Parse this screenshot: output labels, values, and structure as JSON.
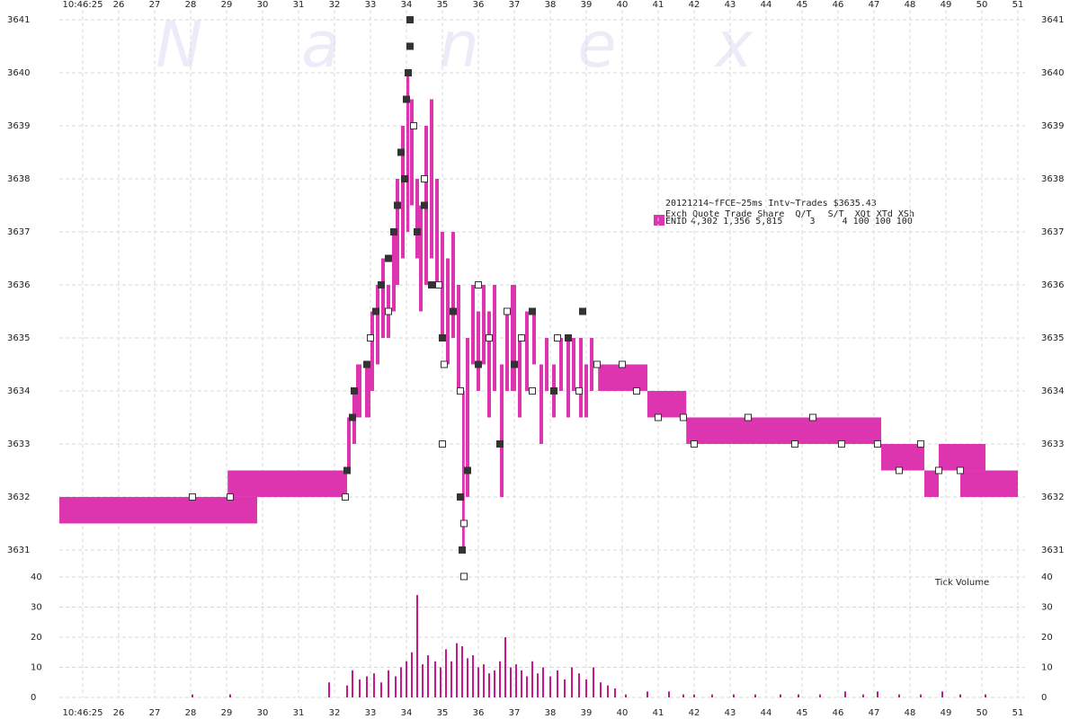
{
  "chart_data": {
    "type": "quote-trade",
    "watermark": "Nanex",
    "legend_lines": [
      "20121214~fFCE~25ms Intv~Trades $3635.43",
      "Exch Quote Trade Share  Q/T   S/T  XQt XTd XSh"
    ],
    "series": [
      {
        "name": "ENID",
        "stats": "4,302 1,356 5,815     3     4 100 100 100",
        "color": "#dd35b0",
        "start": [
          24.35,
          29.03,
          40.7,
          41.78,
          47.2,
          48.4,
          48.8,
          49.4,
          49.4,
          32.35,
          32.5,
          32.6,
          32.85,
          33.0,
          33.15,
          33.3,
          33.45,
          33.6,
          33.7,
          33.85,
          34.0,
          34.1,
          34.25,
          34.35,
          34.5,
          34.65,
          34.8,
          34.95,
          35.1,
          35.25,
          35.4,
          35.55,
          35.65,
          35.8,
          35.95,
          36.1,
          36.25,
          36.4,
          36.6,
          36.75,
          36.9,
          37.1,
          37.3,
          37.5,
          37.7,
          37.85,
          38.05,
          38.25,
          38.45,
          38.6,
          38.8,
          38.95,
          39.1,
          39.33
        ],
        "end": [
          29.85,
          32.35,
          41.78,
          47.2,
          48.4,
          48.8,
          49.4,
          50.1,
          51.0,
          32.45,
          32.6,
          32.75,
          33.0,
          33.1,
          33.25,
          33.4,
          33.55,
          33.7,
          33.8,
          33.95,
          34.08,
          34.2,
          34.35,
          34.45,
          34.6,
          34.75,
          34.9,
          35.05,
          35.2,
          35.35,
          35.5,
          35.62,
          35.75,
          35.9,
          36.05,
          36.2,
          36.35,
          36.5,
          36.7,
          36.85,
          37.05,
          37.2,
          37.4,
          37.6,
          37.8,
          37.95,
          38.15,
          38.35,
          38.55,
          38.7,
          38.9,
          39.05,
          39.2,
          40.7
        ],
        "low": [
          3631.5,
          3632,
          3633.5,
          3633,
          3632.5,
          3632,
          3632.5,
          3632.5,
          3632,
          3632.5,
          3633,
          3633.5,
          3633.5,
          3634,
          3634.5,
          3635,
          3635,
          3635.5,
          3636,
          3636.5,
          3637,
          3637.5,
          3636.5,
          3635.5,
          3636,
          3636.5,
          3636,
          3635,
          3634.5,
          3635,
          3634,
          3631,
          3632,
          3634.5,
          3634,
          3634.5,
          3633.5,
          3634,
          3632,
          3634,
          3634,
          3633.5,
          3634,
          3634.5,
          3633,
          3634,
          3633.5,
          3634,
          3633.5,
          3634,
          3633.5,
          3633.5,
          3634,
          3634
        ],
        "high": [
          3632,
          3632.5,
          3634,
          3633.5,
          3633,
          3632.5,
          3633,
          3633,
          3632.5,
          3633.5,
          3634,
          3634.5,
          3634.5,
          3635.5,
          3636,
          3636.5,
          3636,
          3637,
          3638,
          3639,
          3640,
          3639.5,
          3638,
          3637.5,
          3639,
          3639.5,
          3638,
          3637,
          3636.5,
          3637,
          3636,
          3634,
          3635,
          3636,
          3635.5,
          3636,
          3635.5,
          3636,
          3634.5,
          3635.5,
          3636,
          3635,
          3635.5,
          3635.5,
          3634.5,
          3635,
          3634.5,
          3635,
          3635,
          3635,
          3635,
          3634.5,
          3635,
          3634.5
        ]
      }
    ],
    "trades_light": {
      "color": "#ffffff",
      "x": [
        28.05,
        29.1,
        32.3,
        33.0,
        33.5,
        34.2,
        34.5,
        34.9,
        35.05,
        35.5,
        35.6,
        35.6,
        36.0,
        36.3,
        36.8,
        37.2,
        37.5,
        38.2,
        38.8,
        39.3,
        40.0,
        40.4,
        41.0,
        41.7,
        42.0,
        43.5,
        44.8,
        45.3,
        46.1,
        47.1,
        47.7,
        48.3,
        48.8,
        49.4,
        35.0
      ],
      "y": [
        3632,
        3632,
        3632,
        3635,
        3635.5,
        3639,
        3638,
        3636,
        3634.5,
        3634,
        3631.5,
        3630.5,
        3636,
        3635,
        3635.5,
        3635,
        3634,
        3635,
        3634,
        3634.5,
        3634.5,
        3634,
        3633.5,
        3633.5,
        3633,
        3633.5,
        3633,
        3633.5,
        3633,
        3633,
        3632.5,
        3633,
        3632.5,
        3632.5,
        3633
      ]
    },
    "trades_dark": {
      "color": "#333333",
      "x": [
        32.35,
        32.5,
        32.55,
        32.9,
        33.15,
        33.3,
        33.5,
        33.65,
        33.75,
        33.85,
        34.05,
        34.1,
        34.1,
        34.0,
        34.3,
        34.5,
        34.7,
        35.0,
        35.5,
        35.55,
        35.7,
        36.0,
        36.6,
        37.0,
        37.5,
        38.1,
        38.5,
        38.9,
        35.3,
        33.95
      ],
      "y": [
        3632.5,
        3633.5,
        3634,
        3634.5,
        3635.5,
        3636,
        3636.5,
        3637,
        3637.5,
        3638.5,
        3640,
        3641,
        3640.5,
        3639.5,
        3637,
        3637.5,
        3636,
        3635,
        3632,
        3631,
        3632.5,
        3634.5,
        3633,
        3634.5,
        3635.5,
        3634,
        3635,
        3635.5,
        3635.5,
        3638
      ]
    },
    "xlim": [
      24.35,
      51.2
    ],
    "xticks": [
      {
        "value": 25,
        "label": "10:46:25"
      },
      26,
      27,
      28,
      29,
      30,
      31,
      32,
      33,
      34,
      35,
      36,
      37,
      38,
      39,
      40,
      41,
      42,
      43,
      44,
      45,
      46,
      47,
      48,
      49,
      50,
      51
    ],
    "ylim": [
      3630.55,
      3641.3
    ],
    "yticks": [
      3631,
      3632,
      3633,
      3634,
      3635,
      3636,
      3637,
      3638,
      3639,
      3640,
      3641
    ],
    "volume": {
      "label": "Tick Volume",
      "color": "#c8188c",
      "ylim": [
        0,
        40
      ],
      "yticks": [
        0,
        10,
        20,
        30,
        40
      ],
      "x": [
        28.05,
        29.1,
        31.85,
        32.35,
        32.5,
        32.7,
        32.9,
        33.1,
        33.3,
        33.5,
        33.7,
        33.85,
        34.0,
        34.15,
        34.3,
        34.45,
        34.6,
        34.8,
        34.95,
        35.1,
        35.25,
        35.4,
        35.55,
        35.7,
        35.85,
        36.0,
        36.15,
        36.3,
        36.45,
        36.6,
        36.75,
        36.9,
        37.05,
        37.2,
        37.35,
        37.5,
        37.65,
        37.8,
        38.0,
        38.2,
        38.4,
        38.6,
        38.8,
        39.0,
        39.2,
        39.4,
        39.6,
        39.8,
        40.1,
        40.7,
        41.3,
        41.7,
        42.0,
        42.5,
        43.1,
        43.7,
        44.4,
        44.9,
        45.5,
        46.2,
        46.7,
        47.1,
        47.7,
        48.3,
        48.9,
        49.4,
        50.1
      ],
      "values": [
        1,
        1,
        5,
        4,
        9,
        6,
        7,
        8,
        5,
        9,
        7,
        10,
        12,
        15,
        34,
        11,
        14,
        12,
        10,
        16,
        12,
        18,
        17,
        13,
        14,
        10,
        11,
        8,
        9,
        12,
        20,
        10,
        11,
        9,
        7,
        12,
        8,
        10,
        7,
        9,
        6,
        10,
        8,
        6,
        10,
        5,
        4,
        3,
        1,
        2,
        2,
        1,
        1,
        1,
        1,
        1,
        1,
        1,
        1,
        2,
        1,
        2,
        1,
        1,
        2,
        1,
        1
      ]
    },
    "grid": true
  }
}
